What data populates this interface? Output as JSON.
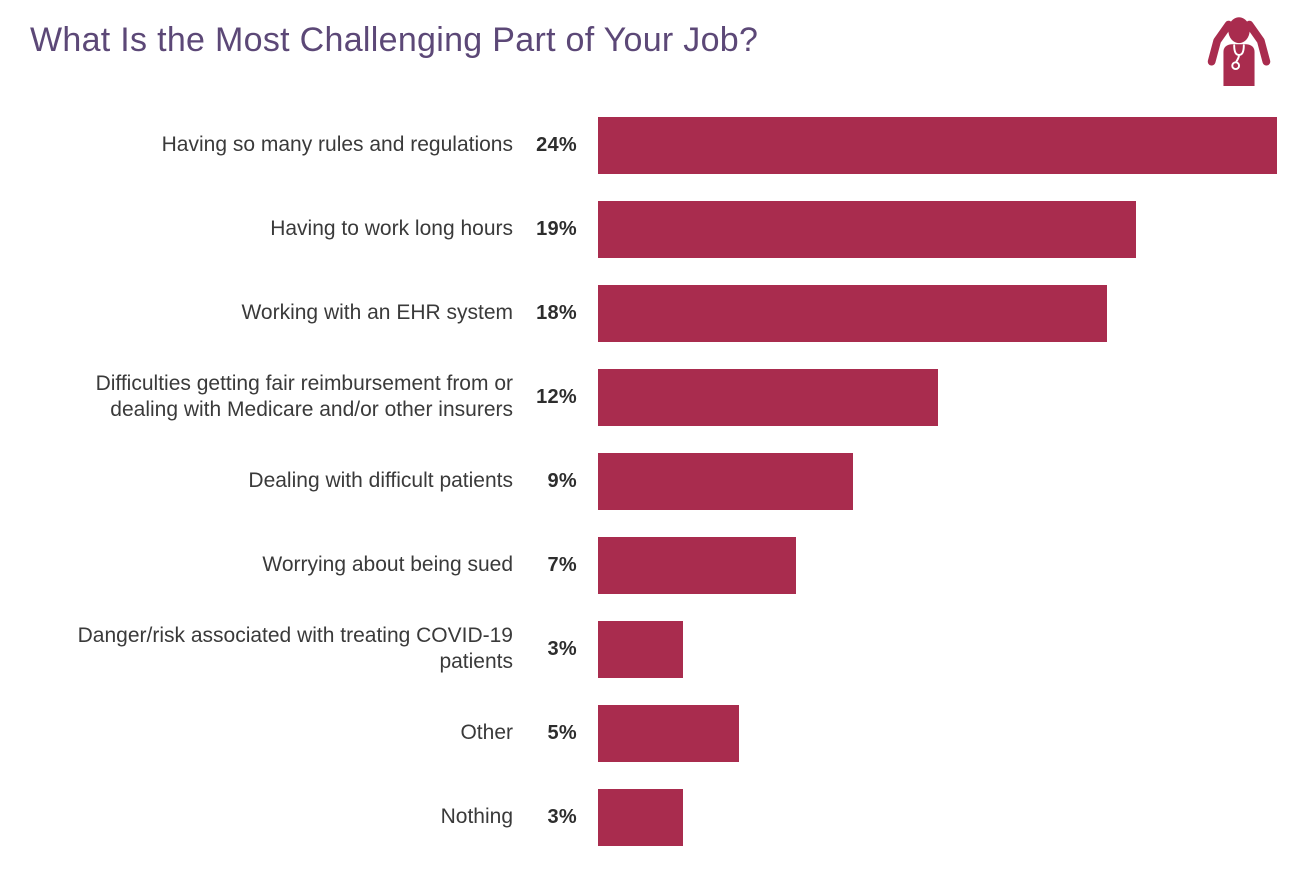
{
  "title": "What Is the Most Challenging Part of Your Job?",
  "icon": {
    "name": "stressed-doctor-icon"
  },
  "colors": {
    "bar": "#a92c4e",
    "title": "#5c4877",
    "label": "#3a3a3a",
    "value": "#2d2d2d",
    "background": "#ffffff"
  },
  "chart_data": {
    "type": "bar",
    "orientation": "horizontal",
    "title": "What Is the Most Challenging Part of Your Job?",
    "categories": [
      "Having so many rules and regulations",
      "Having to work long hours",
      "Working with an EHR system",
      "Difficulties getting fair reimbursement from or dealing with Medicare and/or other insurers",
      "Dealing with difficult patients",
      "Worrying about being sued",
      "Danger/risk associated with treating COVID-19 patients",
      "Other",
      "Nothing"
    ],
    "values": [
      24,
      19,
      18,
      12,
      9,
      7,
      3,
      5,
      3
    ],
    "value_labels": [
      "24%",
      "19%",
      "18%",
      "12%",
      "9%",
      "7%",
      "3%",
      "5%",
      "3%"
    ],
    "value_suffix": "%",
    "xlim": [
      0,
      24
    ],
    "grid": false,
    "legend": false
  }
}
